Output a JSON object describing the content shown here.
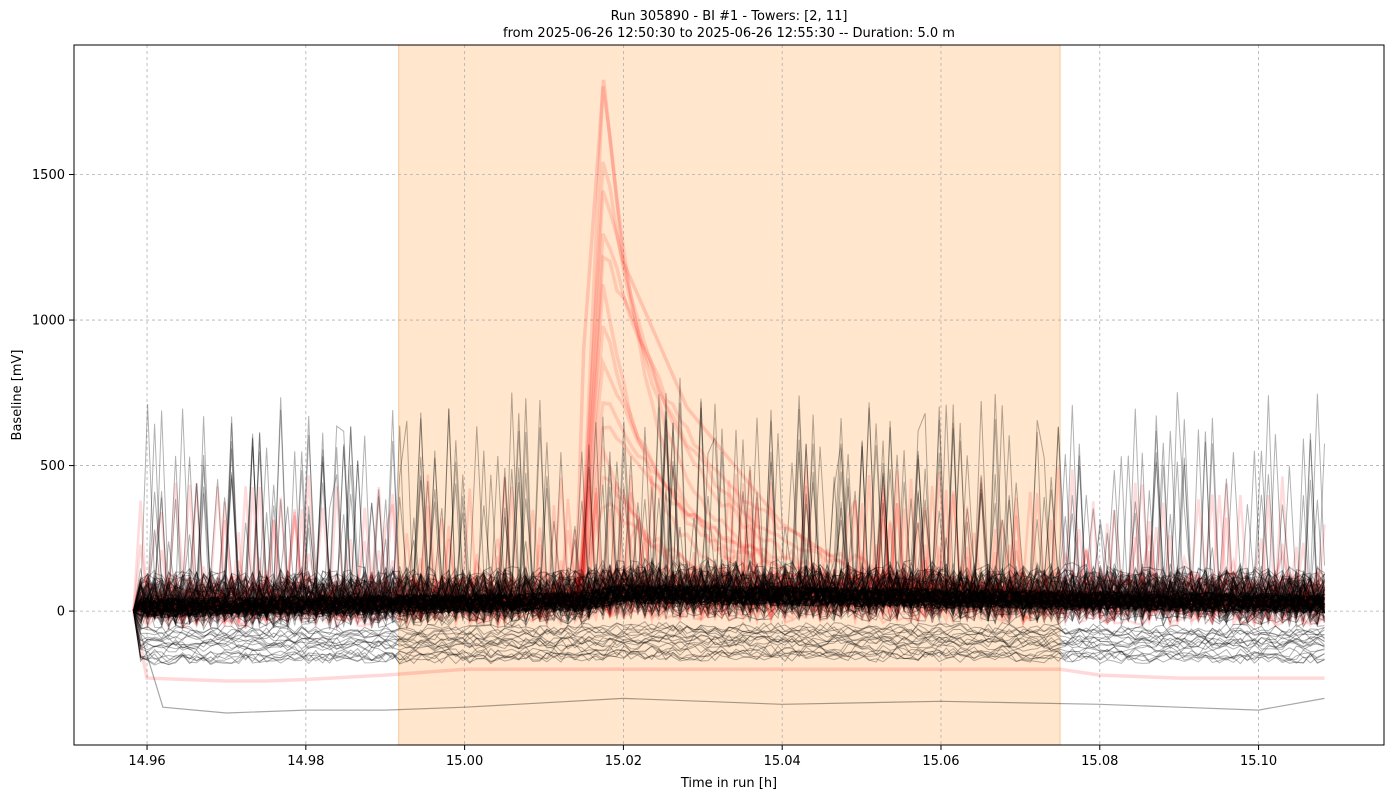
{
  "chart_data": {
    "type": "line",
    "title": "Run 305890  -  BI #1  -  Towers: [2, 11]",
    "subtitle": "from  2025-06-26 12:50:30  to  2025-06-26 12:55:30 -- Duration: 5.0 m",
    "xlabel": "Time in run [h]",
    "ylabel": "Baseline [mV]",
    "xlim": [
      14.9508,
      15.1158
    ],
    "ylim": [
      -460,
      1945
    ],
    "x_ticks": [
      14.96,
      14.98,
      15.0,
      15.02,
      15.04,
      15.06,
      15.08,
      15.1
    ],
    "x_tick_labels": [
      "14.96",
      "14.98",
      "15.00",
      "15.02",
      "15.04",
      "15.06",
      "15.08",
      "15.10"
    ],
    "y_ticks": [
      0,
      500,
      1000,
      1500
    ],
    "y_tick_labels": [
      "0",
      "500",
      "1000",
      "1500"
    ],
    "grid": true,
    "highlight_region": {
      "x": [
        14.9917,
        15.075
      ],
      "color": "#ffe6cc"
    },
    "series_groups": [
      {
        "color": "#ff0000",
        "style": "thick, translucent",
        "spike_x": 15.0175,
        "spike_peak": 1825
      },
      {
        "color": "#000000",
        "style": "thin, translucent",
        "baseline_spread": [
          -350,
          790
        ]
      }
    ],
    "notable_curves": [
      {
        "color": "#ff0000",
        "x": [
          14.9583,
          15.014,
          15.015,
          15.0175,
          15.02,
          15.028,
          15.04,
          15.05,
          15.075,
          15.1083
        ],
        "y": [
          0,
          60,
          900,
          1825,
          1200,
          700,
          300,
          120,
          60,
          20
        ]
      },
      {
        "color": "#ff0000",
        "x": [
          14.9583,
          14.96,
          14.97,
          14.975,
          14.98,
          14.99,
          15.0,
          15.05,
          15.075,
          15.08,
          15.09,
          15.1083
        ],
        "y": [
          0,
          -230,
          -240,
          -240,
          -235,
          -220,
          -200,
          -200,
          -200,
          -220,
          -230,
          -230
        ]
      },
      {
        "color": "#000000",
        "x": [
          14.9583,
          14.962,
          14.97,
          14.98,
          14.99,
          15.0,
          15.02,
          15.04,
          15.06,
          15.08,
          15.09,
          15.1,
          15.1083
        ],
        "y": [
          0,
          -330,
          -350,
          -340,
          -340,
          -330,
          -300,
          -320,
          -310,
          -320,
          -330,
          -340,
          -300
        ]
      }
    ]
  }
}
